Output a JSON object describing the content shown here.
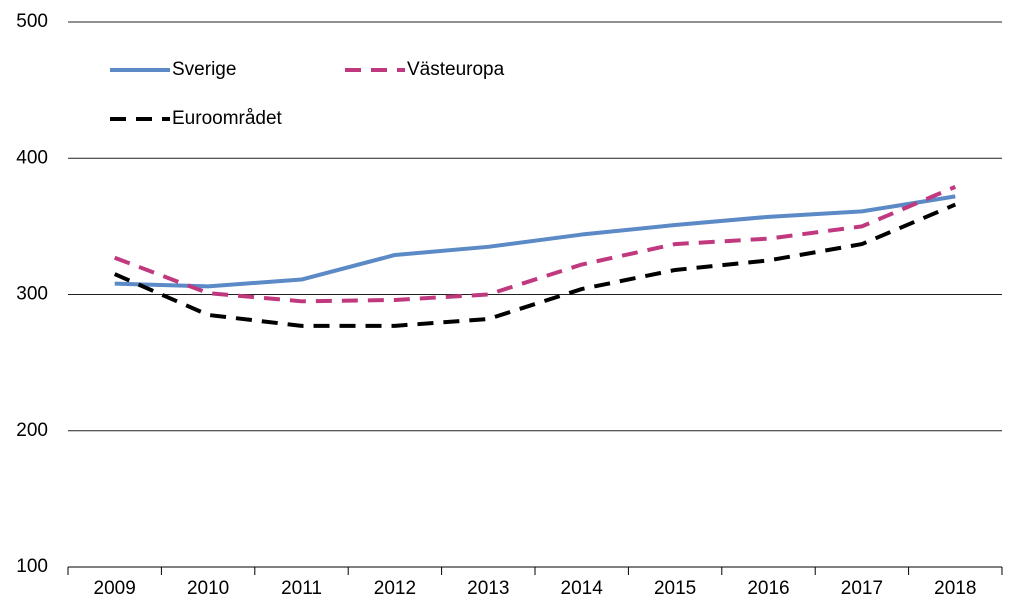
{
  "chart_data": {
    "type": "line",
    "categories": [
      "2009",
      "2010",
      "2011",
      "2012",
      "2013",
      "2014",
      "2015",
      "2016",
      "2017",
      "2018"
    ],
    "series": [
      {
        "name": "Sverige",
        "color": "#5b8ac6",
        "line_style": "solid",
        "values": [
          308,
          306,
          311,
          329,
          335,
          344,
          351,
          357,
          361,
          372
        ]
      },
      {
        "name": "Västeuropa",
        "color": "#c0397f",
        "line_style": "dashed",
        "values": [
          327,
          301,
          295,
          296,
          300,
          322,
          337,
          341,
          350,
          379
        ]
      },
      {
        "name": "Euroområdet",
        "color": "#000000",
        "line_style": "dashed",
        "values": [
          315,
          285,
          277,
          277,
          282,
          304,
          318,
          325,
          337,
          366
        ]
      }
    ],
    "ylim": [
      100,
      500
    ],
    "yticks": [
      100,
      200,
      300,
      400,
      500
    ],
    "grid": true
  }
}
